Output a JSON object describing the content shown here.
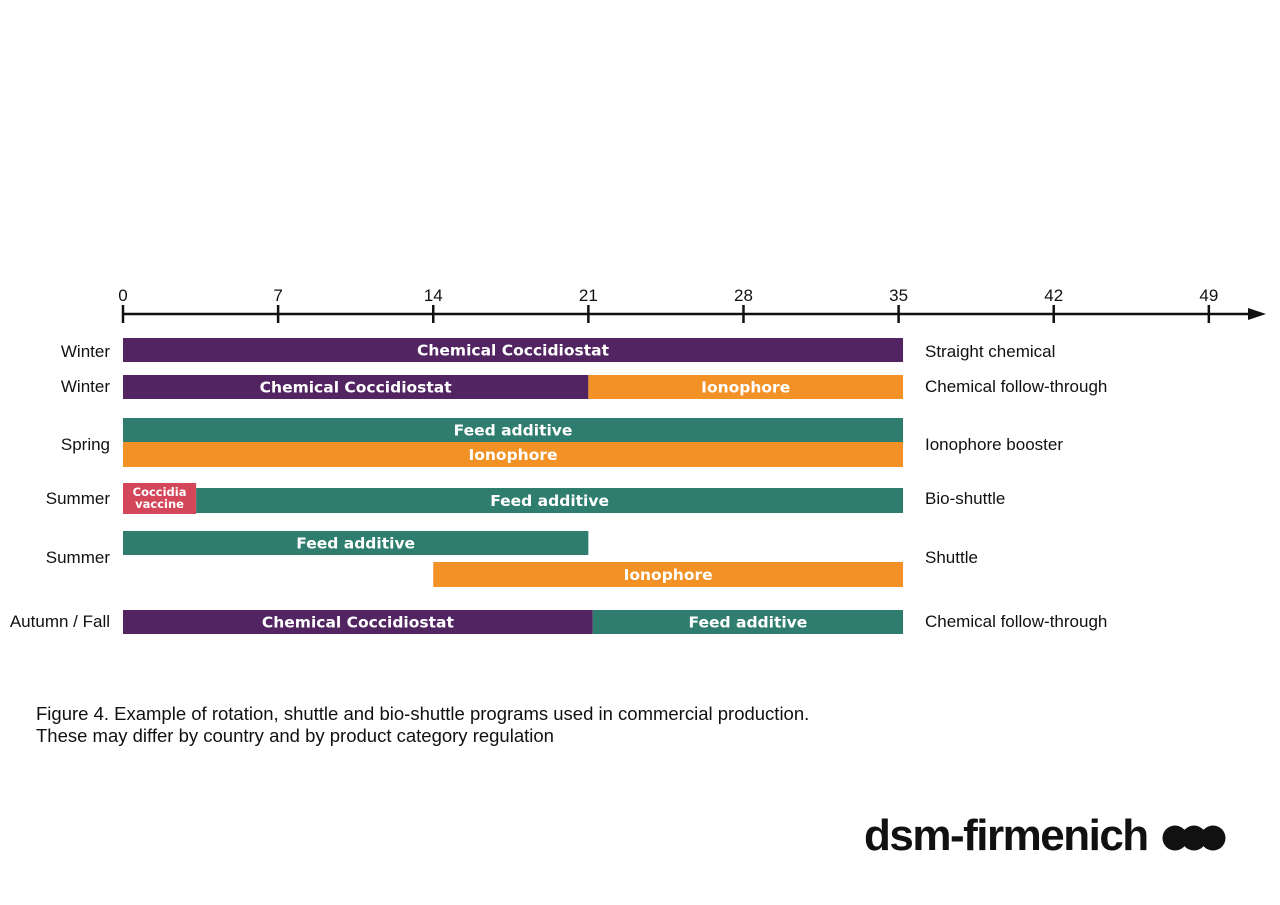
{
  "chart_data": {
    "type": "gantt",
    "title": "",
    "xlabel": "",
    "ylabel": "",
    "xlim": [
      0,
      50
    ],
    "x_ticks": [
      0,
      7,
      14,
      21,
      28,
      35,
      42,
      49
    ],
    "grid": false,
    "colors": {
      "Chemical Coccidiostat": "#522462",
      "Ionophore": "#f29125",
      "Feed additive": "#2e7d6e",
      "Coccidia vaccine": "#d4475a"
    },
    "rows": [
      {
        "season": "Winter",
        "program": "Straight chemical",
        "segments": [
          {
            "label": "Chemical Coccidiostat",
            "category": "Chemical Coccidiostat",
            "start": 0,
            "end": 35.2
          }
        ]
      },
      {
        "season": "Winter",
        "program": "Chemical follow-through",
        "segments": [
          {
            "label": "Chemical Coccidiostat",
            "category": "Chemical Coccidiostat",
            "start": 0,
            "end": 21
          },
          {
            "label": "Ionophore",
            "category": "Ionophore",
            "start": 21,
            "end": 35.2
          }
        ]
      },
      {
        "season": "Spring",
        "program": "Ionophore booster",
        "segments": [
          {
            "label": "Feed additive",
            "category": "Feed additive",
            "start": 0,
            "end": 35.2,
            "lane": 0
          },
          {
            "label": "Ionophore",
            "category": "Ionophore",
            "start": 0,
            "end": 35.2,
            "lane": 1
          }
        ]
      },
      {
        "season": "Summer",
        "program": "Bio-shuttle",
        "segments": [
          {
            "label": "Coccidia vaccine",
            "category": "Coccidia vaccine",
            "start": 0,
            "end": 3.3
          },
          {
            "label": "Feed additive",
            "category": "Feed additive",
            "start": 3.3,
            "end": 35.2
          }
        ]
      },
      {
        "season": "Summer",
        "program": "Shuttle",
        "segments": [
          {
            "label": "Feed additive",
            "category": "Feed additive",
            "start": 0,
            "end": 21,
            "lane": 0
          },
          {
            "label": "Ionophore",
            "category": "Ionophore",
            "start": 14,
            "end": 35.2,
            "lane": 1
          }
        ]
      },
      {
        "season": "Autumn / Fall",
        "program": "Chemical follow-through",
        "segments": [
          {
            "label": "Chemical Coccidiostat",
            "category": "Chemical Coccidiostat",
            "start": 0,
            "end": 21.2
          },
          {
            "label": "Feed additive",
            "category": "Feed additive",
            "start": 21.2,
            "end": 35.2
          }
        ]
      }
    ]
  },
  "caption": {
    "line1": "Figure 4. Example of rotation, shuttle and bio-shuttle programs used in commercial production.",
    "line2": "These may differ by country and by product category regulation"
  },
  "logo": {
    "text": "dsm-firmenich",
    "dots_icon": "three-dots-logo-icon"
  }
}
